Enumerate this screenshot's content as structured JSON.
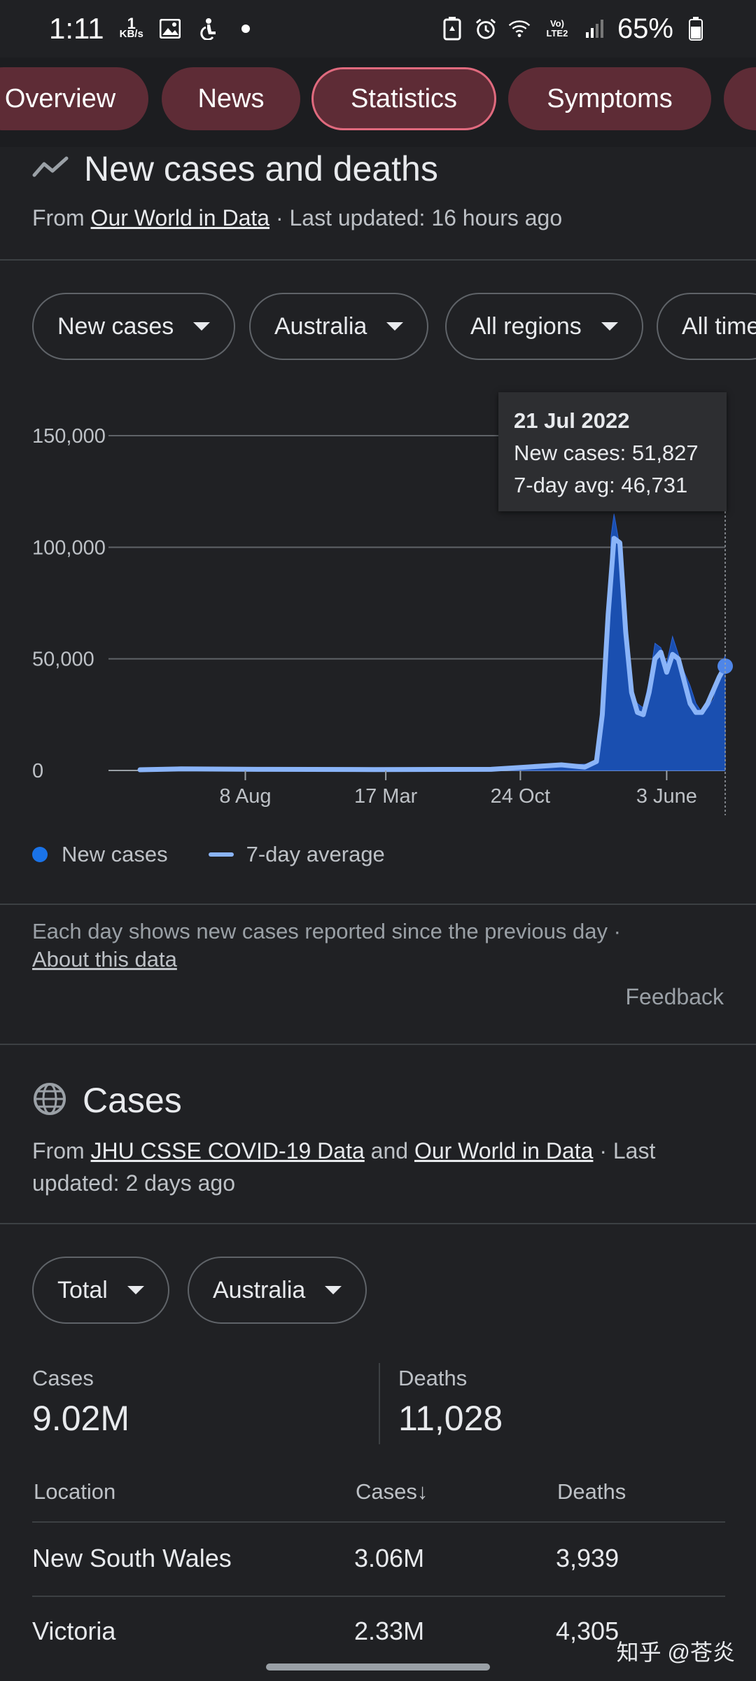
{
  "status_bar": {
    "time": "1:11",
    "speed_value": "1",
    "speed_unit": "KB/s",
    "network": "Vo) LTE2",
    "battery": "65%"
  },
  "tabs": [
    {
      "label": "Overview"
    },
    {
      "label": "News"
    },
    {
      "label": "Statistics"
    },
    {
      "label": "Symptoms"
    }
  ],
  "new_cases": {
    "title": "New cases and deaths",
    "from_prefix": "From",
    "source": "Our World in Data",
    "updated": "· Last updated: 16 hours ago",
    "filters": [
      "New cases",
      "Australia",
      "All regions",
      "All time"
    ],
    "tooltip": {
      "date": "21 Jul 2022",
      "cases": "New cases: 51,827",
      "avg": "7-day avg: 46,731"
    },
    "legend": {
      "cases": "New cases",
      "avg": "7-day average"
    },
    "note": "Each day shows new cases reported since the previous day  ·",
    "about": "About this data",
    "feedback": "Feedback"
  },
  "chart_data": {
    "type": "area",
    "ylim": [
      0,
      150000
    ],
    "y_ticks": [
      "0",
      "50,000",
      "100,000",
      "150,000"
    ],
    "x_ticks": [
      "8 Aug",
      "17 Mar",
      "24 Oct",
      "3 June"
    ],
    "series": [
      {
        "name": "New cases",
        "x": [
          0.0,
          0.07,
          0.2,
          0.4,
          0.6,
          0.72,
          0.78,
          0.79,
          0.8,
          0.805,
          0.81,
          0.82,
          0.83,
          0.84,
          0.85,
          0.86,
          0.87,
          0.88,
          0.89,
          0.9,
          0.91,
          0.92,
          0.93,
          0.94,
          0.95,
          0.96,
          0.97,
          0.98,
          0.99,
          1.0
        ],
        "values": [
          500,
          1500,
          600,
          500,
          500,
          2500,
          3000,
          20000,
          60000,
          105000,
          115000,
          100000,
          60000,
          35000,
          30000,
          28000,
          40000,
          57000,
          55000,
          48000,
          60000,
          52000,
          44000,
          38000,
          30000,
          26000,
          28000,
          32000,
          42000,
          51827
        ]
      },
      {
        "name": "7-day average",
        "x": [
          0.0,
          0.07,
          0.2,
          0.4,
          0.6,
          0.66,
          0.72,
          0.76,
          0.78,
          0.79,
          0.8,
          0.81,
          0.82,
          0.83,
          0.84,
          0.85,
          0.86,
          0.87,
          0.88,
          0.89,
          0.9,
          0.91,
          0.92,
          0.93,
          0.94,
          0.95,
          0.96,
          0.97,
          0.98,
          0.99,
          1.0
        ],
        "values": [
          300,
          700,
          500,
          400,
          500,
          1500,
          2500,
          1500,
          4000,
          25000,
          70000,
          104000,
          102000,
          62000,
          35000,
          26000,
          25000,
          35000,
          50000,
          53000,
          44000,
          52000,
          50000,
          40000,
          30000,
          26000,
          26000,
          30000,
          36000,
          42000,
          46731
        ]
      }
    ]
  },
  "cases_section": {
    "title": "Cases",
    "from_prefix": "From",
    "source1": "JHU CSSE COVID-19 Data",
    "and": "and",
    "source2": "Our World in Data",
    "updated": "· Last updated: 2 days ago",
    "filters": [
      "Total",
      "Australia"
    ],
    "cases_label": "Cases",
    "cases_value": "9.02M",
    "deaths_label": "Deaths",
    "deaths_value": "11,028",
    "table": {
      "headers": [
        "Location",
        "Cases",
        "Deaths"
      ],
      "sort_arrow": "↓",
      "rows": [
        {
          "location": "New South Wales",
          "cases": "3.06M",
          "deaths": "3,939"
        },
        {
          "location": "Victoria",
          "cases": "2.33M",
          "deaths": "4,305"
        }
      ]
    }
  },
  "watermark": "知乎 @苍炎"
}
